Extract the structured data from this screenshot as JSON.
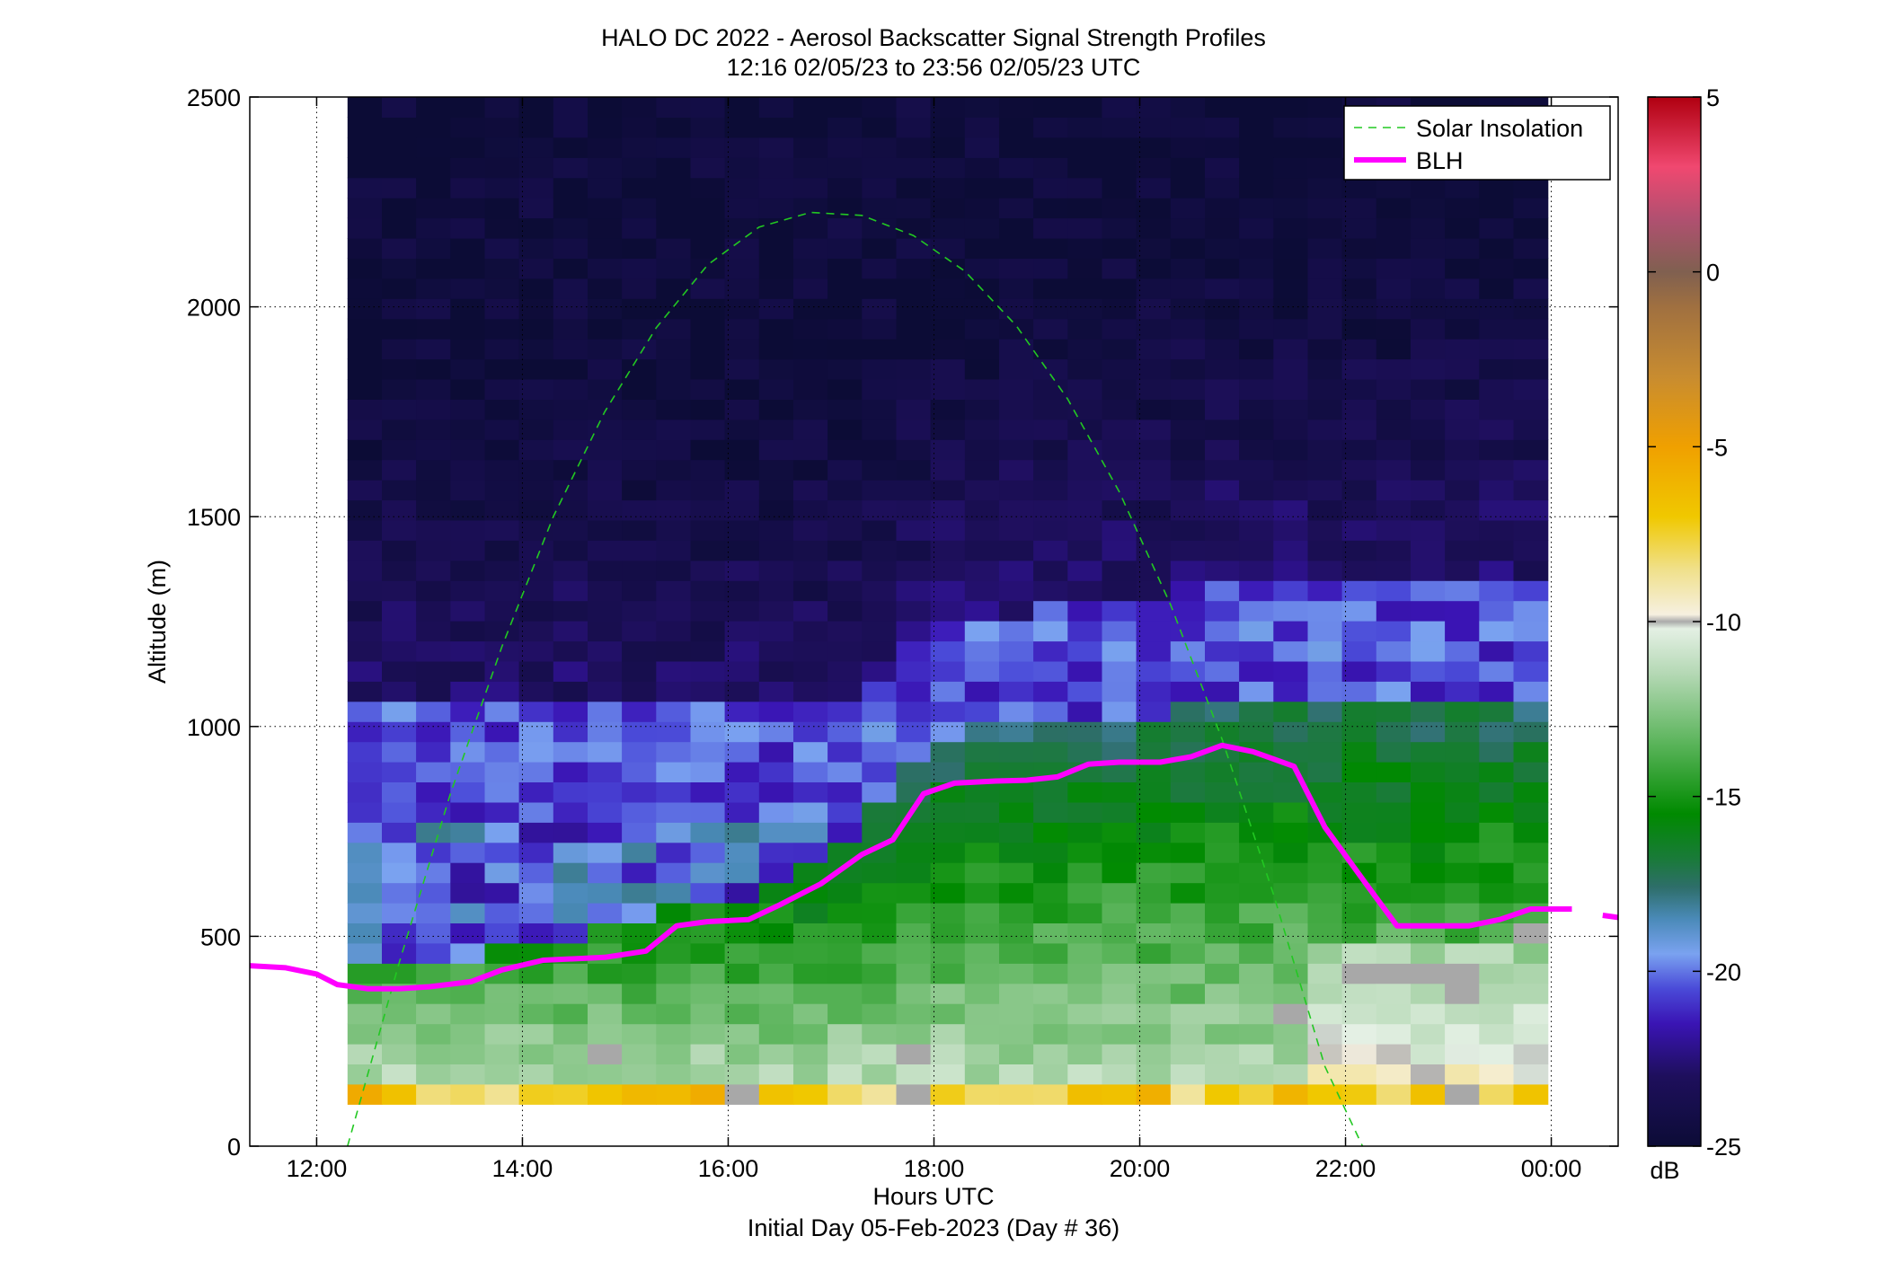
{
  "chart_data": {
    "type": "heatmap",
    "title": "HALO DC 2022 - Aerosol Backscatter Signal Strength Profiles",
    "subtitle": "12:16 02/05/23 to 23:56 02/05/23  UTC",
    "xlabel": "Hours UTC",
    "xlabel2": "Initial Day 05-Feb-2023 (Day # 36)",
    "ylabel": "Altitude (m)",
    "xlim_hours": [
      11.35,
      24.65
    ],
    "ylim": [
      0,
      2500
    ],
    "x_ticks": [
      {
        "hour": 12,
        "label": "12:00"
      },
      {
        "hour": 14,
        "label": "14:00"
      },
      {
        "hour": 16,
        "label": "16:00"
      },
      {
        "hour": 18,
        "label": "18:00"
      },
      {
        "hour": 20,
        "label": "20:00"
      },
      {
        "hour": 22,
        "label": "22:00"
      },
      {
        "hour": 24,
        "label": "00:00"
      }
    ],
    "y_ticks": [
      {
        "value": 0,
        "label": "0"
      },
      {
        "value": 500,
        "label": "500"
      },
      {
        "value": 1000,
        "label": "1000"
      },
      {
        "value": 1500,
        "label": "1500"
      },
      {
        "value": 2000,
        "label": "2000"
      },
      {
        "value": 2500,
        "label": "2500"
      }
    ],
    "grid": true,
    "colorbar": {
      "label": "dB",
      "range": [
        -25,
        5
      ],
      "ticks": [
        {
          "value": 5,
          "label": "5"
        },
        {
          "value": 0,
          "label": "0"
        },
        {
          "value": -5,
          "label": "-5"
        },
        {
          "value": -10,
          "label": "-10"
        },
        {
          "value": -15,
          "label": "-15"
        },
        {
          "value": -20,
          "label": "-20"
        },
        {
          "value": -25,
          "label": "-25"
        }
      ],
      "stops": [
        {
          "value": -25,
          "color": "#0c0c36"
        },
        {
          "value": -23,
          "color": "#1e0f5c"
        },
        {
          "value": -21.5,
          "color": "#3a14b4"
        },
        {
          "value": -20.5,
          "color": "#4a4ad8"
        },
        {
          "value": -19.5,
          "color": "#7aa2f0"
        },
        {
          "value": -18.5,
          "color": "#4a8ab8"
        },
        {
          "value": -17.6,
          "color": "#2e6e6a"
        },
        {
          "value": -16.8,
          "color": "#1a7a3a"
        },
        {
          "value": -15.5,
          "color": "#008a00"
        },
        {
          "value": -13.5,
          "color": "#5ab45a"
        },
        {
          "value": -11.5,
          "color": "#b4d8b4"
        },
        {
          "value": -10.2,
          "color": "#e4f0e4"
        },
        {
          "value": -10,
          "color": "#aaaaaa"
        },
        {
          "value": -9.8,
          "color": "#f6f0e0"
        },
        {
          "value": -8.5,
          "color": "#f0e08a"
        },
        {
          "value": -7,
          "color": "#f0c800"
        },
        {
          "value": -5,
          "color": "#f0a000"
        },
        {
          "value": -3,
          "color": "#c88c30"
        },
        {
          "value": -1,
          "color": "#a07040"
        },
        {
          "value": 0,
          "color": "#806050"
        },
        {
          "value": 1.5,
          "color": "#b05070"
        },
        {
          "value": 3,
          "color": "#f04870"
        },
        {
          "value": 5,
          "color": "#b00010"
        }
      ]
    },
    "heatmap": {
      "x_start_hour": 12.3,
      "x_step_hours": 0.3333,
      "y_start_m": 100,
      "y_step_m": 48.0,
      "columns": 35,
      "rows": 50,
      "gray_cells": [
        {
          "hour": 14.8,
          "alt": 230
        },
        {
          "hour": 17.8,
          "alt": 230
        },
        {
          "hour": 21.4,
          "alt": 310
        },
        {
          "hour": 22.0,
          "alt": 400
        },
        {
          "hour": 22.3,
          "alt": 400
        },
        {
          "hour": 22.7,
          "alt": 400
        },
        {
          "hour": 23.0,
          "alt": 400
        },
        {
          "hour": 23.1,
          "alt": 350
        },
        {
          "hour": 23.9,
          "alt": 500
        },
        {
          "hour": 16.0,
          "alt": 120
        },
        {
          "hour": 17.8,
          "alt": 120
        },
        {
          "hour": 23.0,
          "alt": 120
        }
      ]
    },
    "series": [
      {
        "name": "Solar Insolation",
        "style": "dashed",
        "color": "#22c822",
        "x": [
          12.3,
          12.8,
          13.3,
          13.8,
          14.3,
          14.8,
          15.3,
          15.8,
          16.3,
          16.8,
          17.3,
          17.8,
          18.3,
          18.8,
          19.3,
          19.8,
          20.3,
          20.8,
          21.3,
          21.8,
          22.3,
          22.45
        ],
        "y": [
          0,
          435,
          840,
          1190,
          1500,
          1750,
          1950,
          2100,
          2190,
          2225,
          2218,
          2170,
          2085,
          1955,
          1780,
          1560,
          1290,
          970,
          600,
          190,
          -70,
          -140
        ]
      },
      {
        "name": "BLH",
        "style": "solid",
        "color": "#ff00ff",
        "x": [
          11.35,
          11.7,
          12.0,
          12.2,
          12.5,
          12.8,
          13.1,
          13.5,
          13.8,
          14.2,
          14.8,
          15.2,
          15.5,
          15.8,
          16.2,
          16.5,
          16.9,
          17.3,
          17.6,
          17.9,
          18.2,
          18.6,
          18.9,
          19.2,
          19.5,
          19.8,
          20.2,
          20.5,
          20.8,
          21.1,
          21.5,
          21.8,
          22.2,
          22.5,
          22.9,
          23.2,
          23.5,
          23.8,
          24.2
        ],
        "y": [
          430,
          425,
          410,
          385,
          375,
          375,
          380,
          392,
          420,
          443,
          450,
          465,
          525,
          535,
          540,
          575,
          625,
          695,
          730,
          840,
          865,
          870,
          872,
          880,
          910,
          915,
          915,
          928,
          955,
          940,
          905,
          760,
          625,
          525,
          525,
          525,
          540,
          565,
          565
        ],
        "x2": [
          24.5,
          24.65
        ],
        "y2": [
          550,
          545
        ]
      }
    ],
    "legend": {
      "position": "top-right",
      "entries": [
        {
          "label": "Solar Insolation",
          "style": "dashed",
          "color": "#22c822"
        },
        {
          "label": "BLH",
          "style": "solid",
          "color": "#ff00ff"
        }
      ]
    }
  }
}
